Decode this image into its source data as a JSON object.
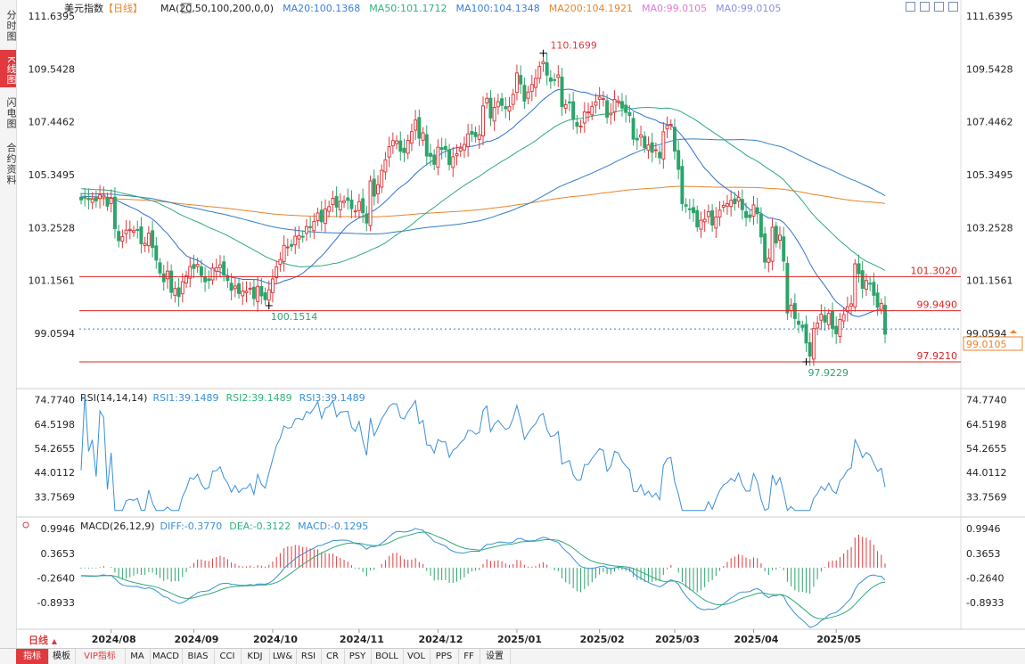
{
  "sidebar": [
    {
      "label": "分时图",
      "active": false
    },
    {
      "label": "K线图",
      "active": true
    },
    {
      "label": "闪电图",
      "active": false
    },
    {
      "label": "合约资料",
      "active": false
    }
  ],
  "header": {
    "instrument": "美元指数",
    "period_tag": "【日线】",
    "ma_label": "MA(20,50,100,200,0,0)",
    "ma_values": [
      {
        "text": "MA20:100.1368",
        "color": "#3a7fd5"
      },
      {
        "text": "MA50:101.1712",
        "color": "#2eb37a"
      },
      {
        "text": "MA100:104.1348",
        "color": "#3a7fd5"
      },
      {
        "text": "MA200:104.1921",
        "color": "#e8842a"
      },
      {
        "text": "MA0:99.0105",
        "color": "#e07ad0"
      },
      {
        "text": "MA0:99.0105",
        "color": "#8a8fd9"
      }
    ]
  },
  "colors": {
    "up": "#e03a3e",
    "down": "#2ca46b",
    "ma20": "#2f6fd0",
    "ma50": "#2eaa7a",
    "ma100": "#2f7fc8",
    "ma200": "#e8842a",
    "rsi": "#3a8fd8",
    "diff": "#3a8fd8",
    "dea": "#2eaa7a"
  },
  "chart_data": {
    "type": "candlestick",
    "dates": [
      "2024-07-22",
      "2024-07-23",
      "2024-07-24",
      "2024-07-25",
      "2024-07-26",
      "2024-07-29",
      "2024-07-30",
      "2024-07-31",
      "2024-08-01",
      "2024-08-02",
      "2024-08-05",
      "2024-08-06",
      "2024-08-07",
      "2024-08-08",
      "2024-08-09",
      "2024-08-12",
      "2024-08-13",
      "2024-08-14",
      "2024-08-15",
      "2024-08-16",
      "2024-08-19",
      "2024-08-20",
      "2024-08-21",
      "2024-08-22",
      "2024-08-23",
      "2024-08-26",
      "2024-08-27",
      "2024-08-28",
      "2024-08-29",
      "2024-08-30",
      "2024-09-02",
      "2024-09-03",
      "2024-09-04",
      "2024-09-05",
      "2024-09-06",
      "2024-09-09",
      "2024-09-10",
      "2024-09-11",
      "2024-09-12",
      "2024-09-13",
      "2024-09-16",
      "2024-09-17",
      "2024-09-18",
      "2024-09-19",
      "2024-09-20",
      "2024-09-23",
      "2024-09-24",
      "2024-09-25",
      "2024-09-26",
      "2024-09-27",
      "2024-09-30",
      "2024-10-01",
      "2024-10-02",
      "2024-10-03",
      "2024-10-04",
      "2024-10-07",
      "2024-10-08",
      "2024-10-09",
      "2024-10-10",
      "2024-10-11",
      "2024-10-14",
      "2024-10-15",
      "2024-10-16",
      "2024-10-17",
      "2024-10-18",
      "2024-10-21",
      "2024-10-22",
      "2024-10-23",
      "2024-10-24",
      "2024-10-25",
      "2024-10-28",
      "2024-10-29",
      "2024-10-30",
      "2024-10-31",
      "2024-11-01",
      "2024-11-04",
      "2024-11-05",
      "2024-11-06",
      "2024-11-07",
      "2024-11-08",
      "2024-11-11",
      "2024-11-12",
      "2024-11-13",
      "2024-11-14",
      "2024-11-15",
      "2024-11-18",
      "2024-11-19",
      "2024-11-20",
      "2024-11-21",
      "2024-11-22",
      "2024-11-25",
      "2024-11-26",
      "2024-11-27",
      "2024-11-28",
      "2024-11-29",
      "2024-12-02",
      "2024-12-03",
      "2024-12-04",
      "2024-12-05",
      "2024-12-06",
      "2024-12-09",
      "2024-12-10",
      "2024-12-11",
      "2024-12-12",
      "2024-12-13",
      "2024-12-16",
      "2024-12-17",
      "2024-12-18",
      "2024-12-19",
      "2024-12-20",
      "2024-12-23",
      "2024-12-24",
      "2024-12-26",
      "2024-12-27",
      "2024-12-30",
      "2024-12-31",
      "2025-01-02",
      "2025-01-03",
      "2025-01-06",
      "2025-01-07",
      "2025-01-08",
      "2025-01-09",
      "2025-01-10",
      "2025-01-13",
      "2025-01-14",
      "2025-01-15",
      "2025-01-16",
      "2025-01-17",
      "2025-01-20",
      "2025-01-21",
      "2025-01-22",
      "2025-01-23",
      "2025-01-24",
      "2025-01-27",
      "2025-01-28",
      "2025-01-29",
      "2025-01-30",
      "2025-01-31",
      "2025-02-03",
      "2025-02-04",
      "2025-02-05",
      "2025-02-06",
      "2025-02-07",
      "2025-02-10",
      "2025-02-11",
      "2025-02-12",
      "2025-02-13",
      "2025-02-14",
      "2025-02-17",
      "2025-02-18",
      "2025-02-19",
      "2025-02-20",
      "2025-02-21",
      "2025-02-24",
      "2025-02-25",
      "2025-02-26",
      "2025-02-27",
      "2025-02-28",
      "2025-03-03",
      "2025-03-04",
      "2025-03-05",
      "2025-03-06",
      "2025-03-07",
      "2025-03-10",
      "2025-03-11",
      "2025-03-12",
      "2025-03-13",
      "2025-03-14",
      "2025-03-17",
      "2025-03-18",
      "2025-03-19",
      "2025-03-20",
      "2025-03-21",
      "2025-03-24",
      "2025-03-25",
      "2025-03-26",
      "2025-03-27",
      "2025-03-28",
      "2025-03-31",
      "2025-04-01",
      "2025-04-02",
      "2025-04-03",
      "2025-04-04",
      "2025-04-07",
      "2025-04-08",
      "2025-04-09",
      "2025-04-10",
      "2025-04-11",
      "2025-04-14",
      "2025-04-15",
      "2025-04-16",
      "2025-04-17",
      "2025-04-18",
      "2025-04-21",
      "2025-04-22",
      "2025-04-23",
      "2025-04-24",
      "2025-04-25",
      "2025-04-28",
      "2025-04-29",
      "2025-04-30",
      "2025-05-01",
      "2025-05-02",
      "2025-05-05",
      "2025-05-06",
      "2025-05-07",
      "2025-05-08",
      "2025-05-09",
      "2025-05-12",
      "2025-05-13",
      "2025-05-14",
      "2025-05-15",
      "2025-05-16",
      "2025-05-19",
      "2025-05-20"
    ],
    "close": [
      104.35,
      104.44,
      104.36,
      104.38,
      104.31,
      104.55,
      104.53,
      104.1,
      104.41,
      103.21,
      102.73,
      102.89,
      103.15,
      103.18,
      103.13,
      103.17,
      102.61,
      102.62,
      103.03,
      102.46,
      101.96,
      101.45,
      101.1,
      101.52,
      100.68,
      100.83,
      100.51,
      101.1,
      101.34,
      101.7,
      101.63,
      101.79,
      101.35,
      101.1,
      101.15,
      101.64,
      101.65,
      101.77,
      101.37,
      101.15,
      100.76,
      100.93,
      100.63,
      100.73,
      100.73,
      100.84,
      100.43,
      100.92,
      100.54,
      100.39,
      100.78,
      101.21,
      101.69,
      101.98,
      102.54,
      102.48,
      102.51,
      102.91,
      102.93,
      102.9,
      103.29,
      103.25,
      103.49,
      103.83,
      103.48,
      103.99,
      104.08,
      104.41,
      104.06,
      104.29,
      104.31,
      104.33,
      104.0,
      103.91,
      104.28,
      103.84,
      103.43,
      105.1,
      104.5,
      104.95,
      105.52,
      105.94,
      106.46,
      106.7,
      106.69,
      106.28,
      106.23,
      106.71,
      107.06,
      107.52,
      106.8,
      107.01,
      106.09,
      106.08,
      105.76,
      106.44,
      106.35,
      106.35,
      105.75,
      106.06,
      106.18,
      106.4,
      106.55,
      106.97,
      106.96,
      106.86,
      106.93,
      108.08,
      108.38,
      107.6,
      108.02,
      108.25,
      108.1,
      107.97,
      108.06,
      108.54,
      109.39,
      108.95,
      108.27,
      108.63,
      108.93,
      109.17,
      109.64,
      109.83,
      109.3,
      109.06,
      109.12,
      109.31,
      108.05,
      108.13,
      108.2,
      107.54,
      107.27,
      107.28,
      107.84,
      107.84,
      108.06,
      108.24,
      108.43,
      108.37,
      107.63,
      107.79,
      108.34,
      108.28,
      107.99,
      107.82,
      107.7,
      106.76,
      106.73,
      106.93,
      106.42,
      106.53,
      106.24,
      106.34,
      106.02,
      107.05,
      107.3,
      107.35,
      106.29,
      105.56,
      104.2,
      104.1,
      103.97,
      103.84,
      103.28,
      103.54,
      103.58,
      103.88,
      103.35,
      103.67,
      103.94,
      104.13,
      104.2,
      104.33,
      104.2,
      104.45,
      103.96,
      103.65,
      103.65,
      104.15,
      103.8,
      102.88,
      101.88,
      102.03,
      103.26,
      102.64,
      102.95,
      101.92,
      99.86,
      100.17,
      99.64,
      99.41,
      99.29,
      98.67,
      98.15,
      99.24,
      99.46,
      99.81,
      99.5,
      99.84,
      99.25,
      99.03,
      99.6,
      99.8,
      100.11,
      100.22,
      101.81,
      101.42,
      100.84,
      101.15,
      101.01,
      100.56,
      100.09,
      100.24,
      99.02
    ],
    "ma_labels": [
      "MA20",
      "MA50",
      "MA100",
      "MA200"
    ],
    "y_ticks": [
      "111.6395",
      "109.5428",
      "107.4462",
      "105.3495",
      "103.2528",
      "101.1561",
      "99.0594"
    ],
    "ylim": [
      97.0,
      112.0
    ],
    "x_labels": [
      "2024/08",
      "2024/09",
      "2024/10",
      "2024/11",
      "2024/12",
      "2025/01",
      "2025/02",
      "2025/03",
      "2025/04",
      "2025/05"
    ],
    "x_label_dates": [
      "2024-08-01",
      "2024-09-02",
      "2024-10-01",
      "2024-11-01",
      "2024-12-02",
      "2025-01-02",
      "2025-02-03",
      "2025-03-03",
      "2025-04-01",
      "2025-05-01"
    ],
    "hlines": [
      {
        "value": 101.302,
        "label": "101.3020"
      },
      {
        "value": 99.949,
        "label": "99.9490"
      },
      {
        "value": 97.921,
        "label": "97.9210"
      }
    ],
    "dotted_line": {
      "value": 99.0105,
      "label": "99.0105"
    },
    "annotations": [
      {
        "date": "2025-01-13",
        "value": 110.1699,
        "label": "110.1699",
        "type": "high"
      },
      {
        "date": "2024-09-30",
        "value": 100.1514,
        "label": "100.1514",
        "type": "low"
      },
      {
        "date": "2025-04-21",
        "value": 97.9229,
        "label": "97.9229",
        "type": "low"
      }
    ],
    "rsi": {
      "label": "RSI(14,14,14)",
      "values_text": [
        "RSI1:39.1489",
        "RSI2:39.1489",
        "RSI3:39.1489"
      ],
      "y_ticks": [
        "74.7740",
        "64.5198",
        "54.2655",
        "44.0112",
        "33.7569"
      ],
      "ylim": [
        26,
        78
      ]
    },
    "macd": {
      "label": "MACD(26,12,9)",
      "values_text": [
        "DIFF:-0.3770",
        "DEA:-0.3122",
        "MACD:-0.1295"
      ],
      "y_ticks": [
        "0.9946",
        "0.3653",
        "-0.2640",
        "-0.8933"
      ],
      "ylim": [
        -1.55,
        1.25
      ]
    }
  },
  "bottom_tabs": [
    {
      "label": "指标",
      "active": true
    },
    {
      "label": "模板",
      "active": false
    },
    {
      "label": "VIP指标",
      "active": false,
      "vip": true
    },
    {
      "label": "MA",
      "active": false
    },
    {
      "label": "MACD",
      "active": false
    },
    {
      "label": "BIAS",
      "active": false
    },
    {
      "label": "CCI",
      "active": false
    },
    {
      "label": "KDJ",
      "active": false
    },
    {
      "label": "LW&",
      "active": false
    },
    {
      "label": "RSI",
      "active": false
    },
    {
      "label": "CR",
      "active": false
    },
    {
      "label": "PSY",
      "active": false
    },
    {
      "label": "BOLL",
      "active": false
    },
    {
      "label": "VOL",
      "active": false
    },
    {
      "label": "PPS",
      "active": false
    },
    {
      "label": "FF",
      "active": false
    },
    {
      "label": "设置",
      "active": false
    }
  ],
  "period_selector": {
    "label": "日线"
  }
}
